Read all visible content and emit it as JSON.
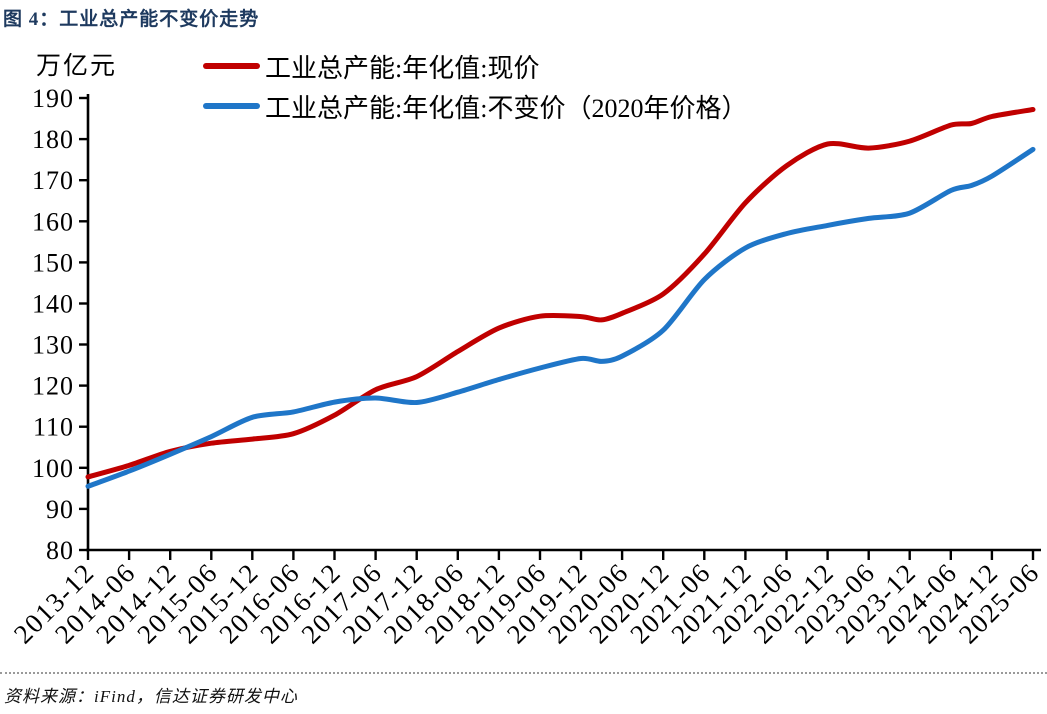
{
  "figure": {
    "title": "图 4：工业总产能不变价走势",
    "title_color": "#1E3A5F",
    "source": "资料来源：iFind，信达证券研发中心"
  },
  "chart_data": {
    "type": "line",
    "unit_label": "万亿元",
    "ylabel": "万亿元",
    "xlabel": "",
    "ylim": [
      80,
      190
    ],
    "y_tick_step": 10,
    "grid": false,
    "smoothed_lines": true,
    "legend_position": "top-left",
    "x_tick_labels": [
      "2013-12",
      "2014-06",
      "2014-12",
      "2015-06",
      "2015-12",
      "2016-06",
      "2016-12",
      "2017-06",
      "2017-12",
      "2018-06",
      "2018-12",
      "2019-06",
      "2019-12",
      "2020-06",
      "2020-12",
      "2021-06",
      "2021-12",
      "2022-06",
      "2022-12",
      "2023-06",
      "2023-12",
      "2024-06",
      "2024-12",
      "2025-06"
    ],
    "series": [
      {
        "name": "工业总产能:年化值:现价",
        "color": "#C00000",
        "points": [
          [
            0,
            97.8
          ],
          [
            1,
            100.6
          ],
          [
            2,
            104.0
          ],
          [
            3,
            106.0
          ],
          [
            4,
            107.0
          ],
          [
            5,
            108.3
          ],
          [
            6,
            112.8
          ],
          [
            7,
            119.0
          ],
          [
            8,
            122.2
          ],
          [
            9,
            128.3
          ],
          [
            10,
            134.0
          ],
          [
            11,
            136.9
          ],
          [
            12,
            136.8
          ],
          [
            12.5,
            136.0
          ],
          [
            13,
            137.6
          ],
          [
            14,
            142.3
          ],
          [
            15,
            152.0
          ],
          [
            16,
            164.5
          ],
          [
            17,
            173.5
          ],
          [
            18,
            178.8
          ],
          [
            19,
            177.8
          ],
          [
            20,
            179.5
          ],
          [
            21,
            183.4
          ],
          [
            21.5,
            183.8
          ],
          [
            22,
            185.5
          ],
          [
            23,
            187.2
          ]
        ]
      },
      {
        "name": "工业总产能:年化值:不变价（2020年价格）",
        "color": "#1F76C8",
        "points": [
          [
            0,
            95.5
          ],
          [
            1,
            99.2
          ],
          [
            2,
            103.3
          ],
          [
            3,
            107.6
          ],
          [
            4,
            112.3
          ],
          [
            5,
            113.6
          ],
          [
            6,
            116.0
          ],
          [
            7,
            117.0
          ],
          [
            8,
            115.9
          ],
          [
            9,
            118.4
          ],
          [
            10,
            121.5
          ],
          [
            11,
            124.3
          ],
          [
            12,
            126.6
          ],
          [
            12.5,
            125.9
          ],
          [
            13,
            127.2
          ],
          [
            14,
            133.5
          ],
          [
            15,
            145.8
          ],
          [
            16,
            153.5
          ],
          [
            17,
            157.0
          ],
          [
            18,
            159.0
          ],
          [
            19,
            160.7
          ],
          [
            20,
            162.0
          ],
          [
            21,
            167.5
          ],
          [
            21.5,
            168.7
          ],
          [
            22,
            171.0
          ],
          [
            23,
            177.5
          ]
        ]
      }
    ]
  }
}
